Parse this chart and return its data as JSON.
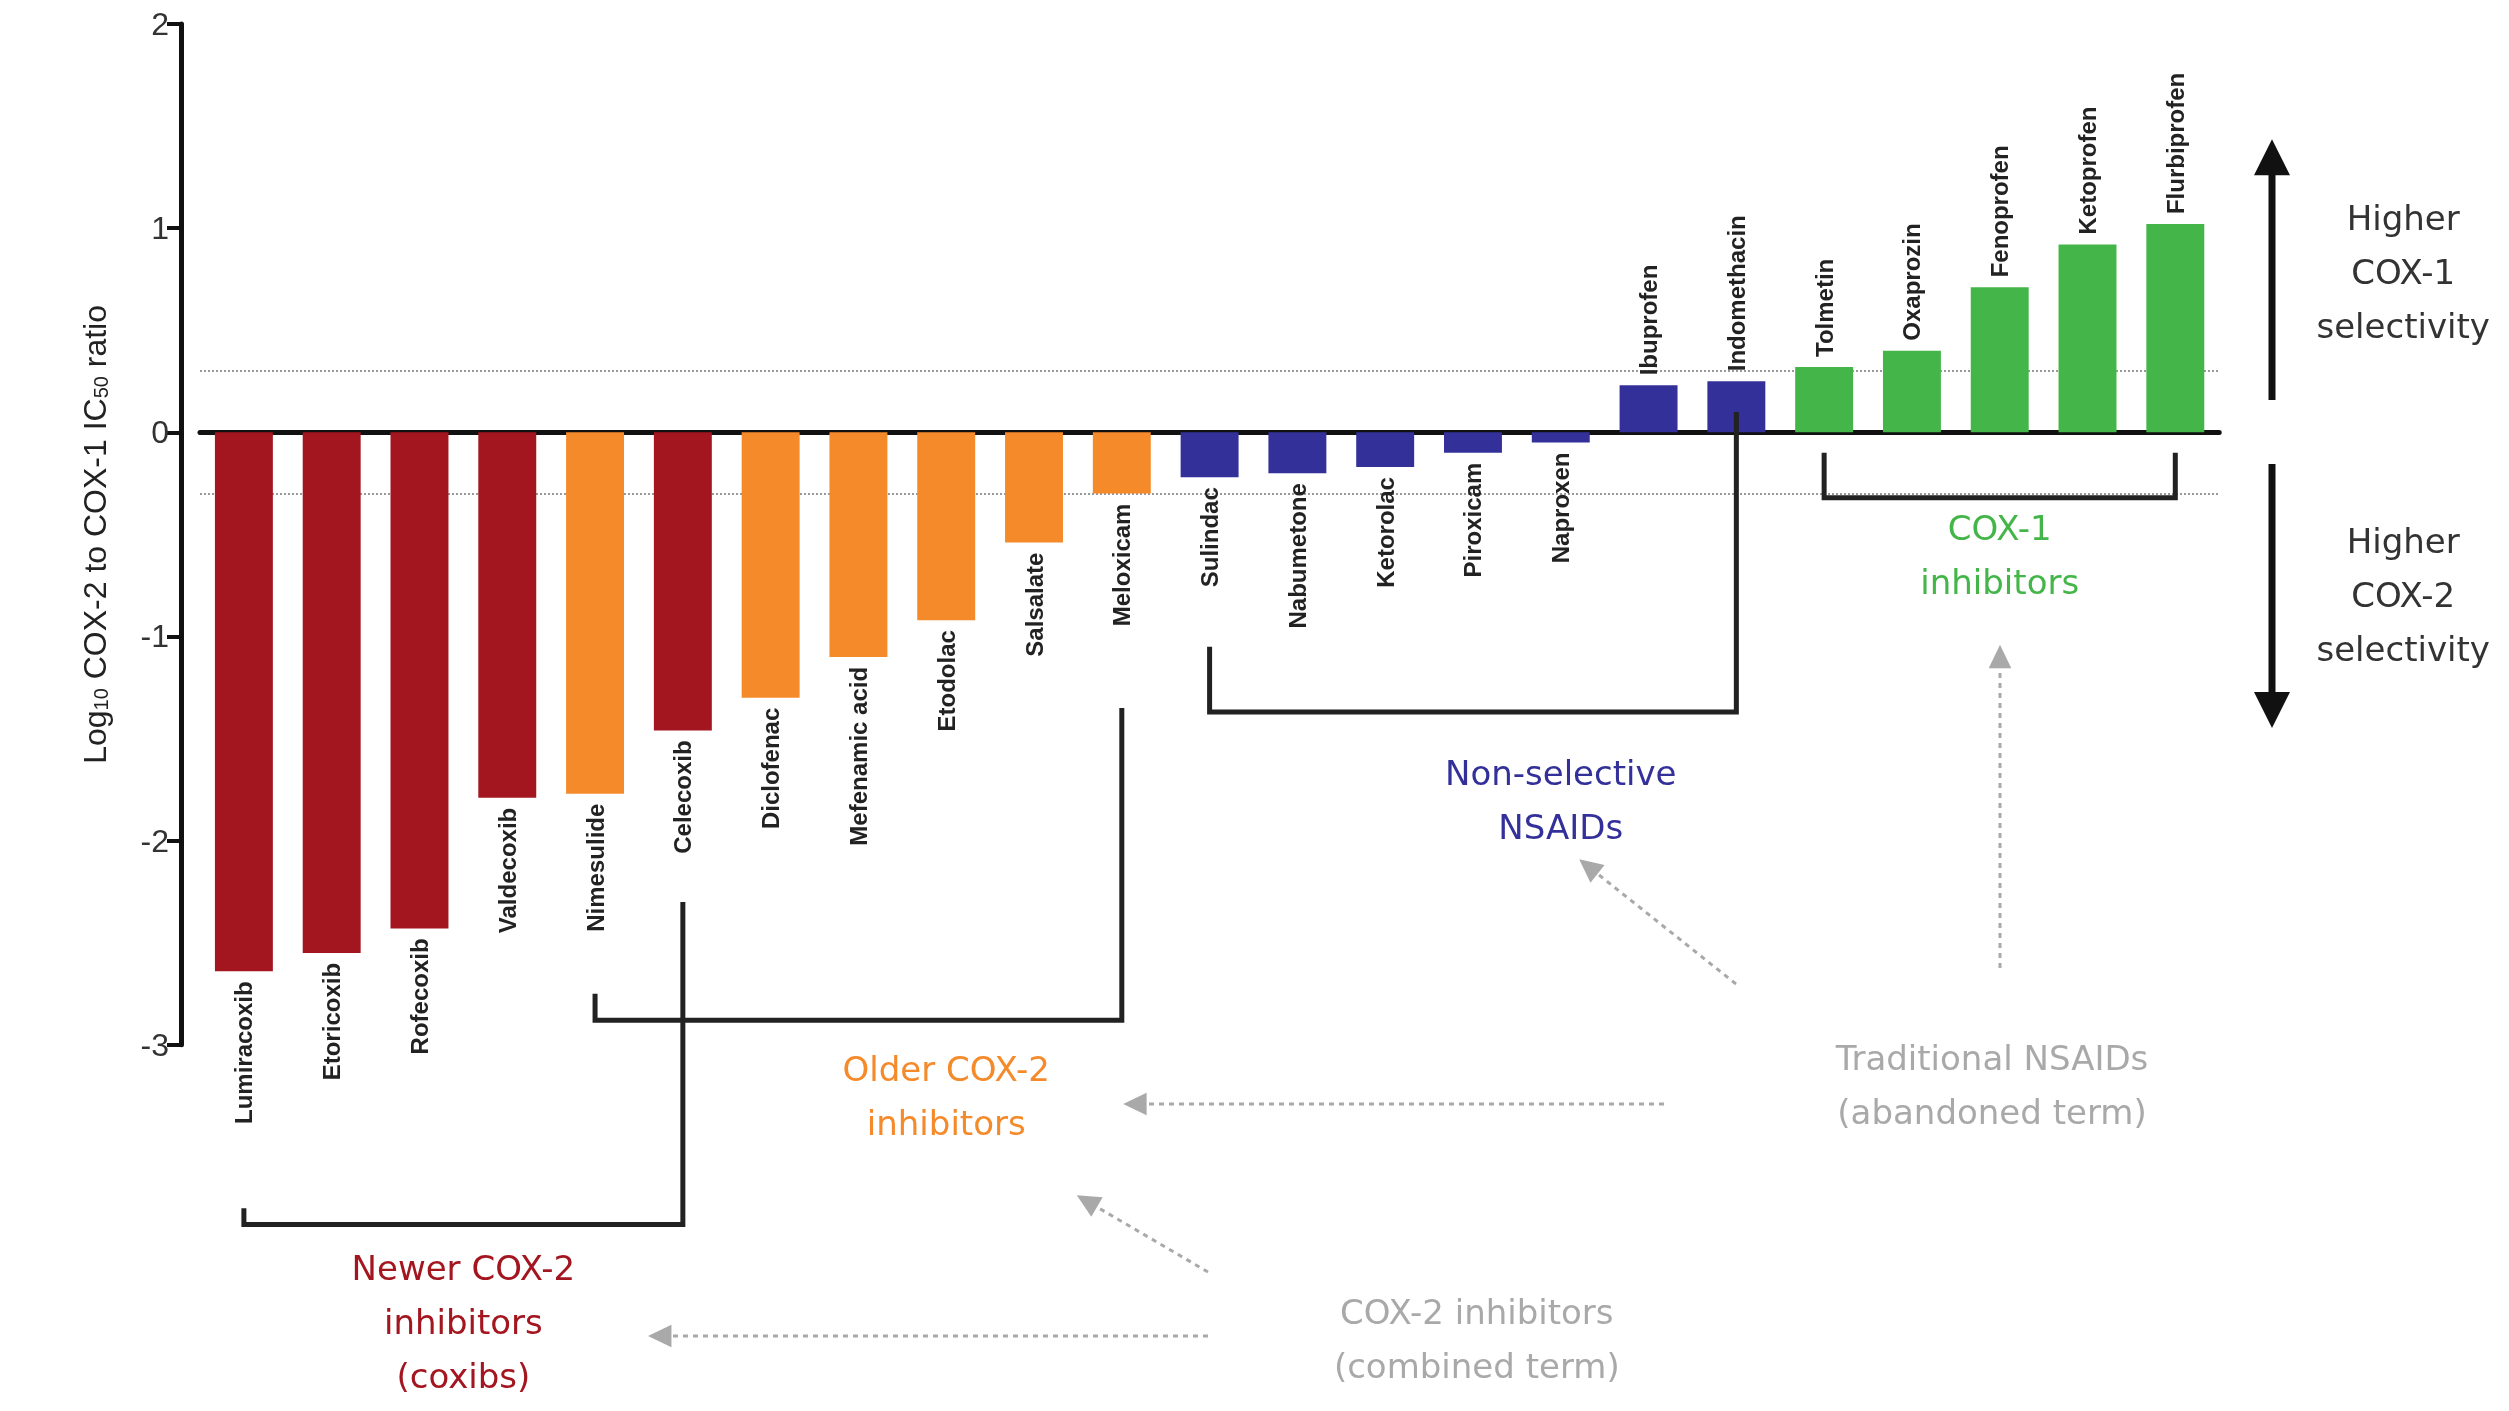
{
  "chart_data": {
    "type": "bar",
    "ylabel": "Log$_{10}$ COX-2 to COX-1 IC$_{50}$ ratio",
    "categories": [
      "Lumiracoxib",
      "Etoricoxib",
      "Rofecoxib",
      "Valdecoxib",
      "Nimesulide",
      "Celecoxib",
      "Diclofenac",
      "Mefenamic acid",
      "Etodolac",
      "Salsalate",
      "Meloxicam",
      "Sulindac",
      "Nabumetone",
      "Ketorolac",
      "Piroxicam",
      "Naproxen",
      "Ibuprofen",
      "Indomethacin",
      "Tolmetin",
      "Oxaprozin",
      "Fenoprofen",
      "Ketoprofen",
      "Flurbiprofen"
    ],
    "values": [
      -2.64,
      -2.55,
      -2.43,
      -1.79,
      -1.77,
      -1.46,
      -1.3,
      -1.1,
      -0.92,
      -0.54,
      -0.3,
      -0.22,
      -0.2,
      -0.17,
      -0.1,
      -0.05,
      0.23,
      0.25,
      0.32,
      0.4,
      0.71,
      0.92,
      1.02
    ],
    "colors": [
      "#a3151f",
      "#a3151f",
      "#a3151f",
      "#a3151f",
      "#f58a2b",
      "#a3151f",
      "#f58a2b",
      "#f58a2b",
      "#f58a2b",
      "#f58a2b",
      "#f58a2b",
      "#33309a",
      "#33309a",
      "#33309a",
      "#33309a",
      "#33309a",
      "#33309a",
      "#33309a",
      "#44b649",
      "#44b649",
      "#44b649",
      "#44b649",
      "#44b649"
    ],
    "ylim": [
      -3,
      2
    ],
    "yticks": [
      -3,
      -2,
      -1,
      0,
      1,
      2
    ],
    "grid": false,
    "ref_lines": [
      {
        "axis": "y",
        "value": 0.3,
        "color": "#999999",
        "line_style": "dotted"
      },
      {
        "axis": "y",
        "value": -0.3,
        "color": "#999999",
        "line_style": "dotted"
      }
    ],
    "annotations": [
      "Newer COX-2\ninhibitors\n(coxibs)",
      "Older COX-2\ninhibitors",
      "Non-selective\nNSAIDs",
      "COX-1\ninhibitors",
      "Traditional NSAIDs\n(abandoned term)",
      "COX-2 inhibitors\n(combined term)",
      "Higher\nCOX-1\nselectivity",
      "Higher\nCOX-2\nselectivity"
    ]
  }
}
